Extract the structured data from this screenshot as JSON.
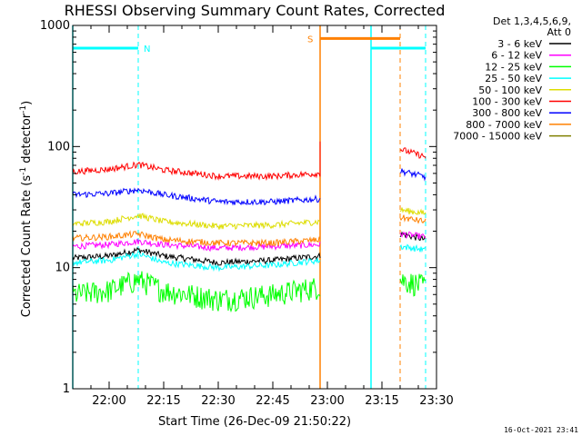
{
  "chart_data": {
    "type": "line",
    "title": "RHESSI Observing Summary Count Rates, Corrected",
    "xlabel": "Start Time (26-Dec-09 21:50:22)",
    "ylabel": "Corrected Count Rate (s⁻¹ detector⁻¹)",
    "ylabel_main": "Corrected Count Rate (s",
    "ylabel_sup1": "-1",
    "ylabel_mid": " detector",
    "ylabel_sup2": "-1",
    "ylabel_end": ")",
    "yscale": "log",
    "ylim": [
      1,
      1000
    ],
    "y_ticks": [
      {
        "value": 1,
        "label": "1"
      },
      {
        "value": 10,
        "label": "10"
      },
      {
        "value": 100,
        "label": "100"
      },
      {
        "value": 1000,
        "label": "1000"
      }
    ],
    "xlim": [
      "21:50",
      "23:30"
    ],
    "x_ticks": [
      {
        "value": "22:00",
        "label": "22:00"
      },
      {
        "value": "22:15",
        "label": "22:15"
      },
      {
        "value": "22:30",
        "label": "22:30"
      },
      {
        "value": "22:45",
        "label": "22:45"
      },
      {
        "value": "23:00",
        "label": "23:00"
      },
      {
        "value": "23:15",
        "label": "23:15"
      },
      {
        "value": "23:30",
        "label": "23:30"
      }
    ],
    "legend": {
      "position": "right",
      "header_line1": "Det 1,3,4,5,6,9,",
      "header_line2": "Att 0"
    },
    "data_gap": [
      "22:58",
      "23:20"
    ],
    "series": [
      {
        "name": "3 - 6 keV",
        "color": "#000000",
        "x": [
          "21:50",
          "22:00",
          "22:08",
          "22:15",
          "22:30",
          "22:45",
          "22:58",
          "23:20",
          "23:27"
        ],
        "y": [
          12,
          12.5,
          14,
          12.5,
          11,
          11.5,
          12.5,
          19,
          17
        ]
      },
      {
        "name": "6 - 12 keV",
        "color": "#ff00ff",
        "x": [
          "21:50",
          "22:00",
          "22:08",
          "22:15",
          "22:30",
          "22:45",
          "22:58",
          "23:20",
          "23:27"
        ],
        "y": [
          15,
          15.5,
          16.5,
          15.5,
          14.5,
          15,
          15.5,
          19,
          18
        ]
      },
      {
        "name": "12 - 25 keV",
        "color": "#00ff00",
        "x": [
          "21:50",
          "22:00",
          "22:08",
          "22:15",
          "22:30",
          "22:45",
          "22:58",
          "23:20",
          "23:27"
        ],
        "y": [
          6,
          6.5,
          8,
          6.5,
          5.5,
          6,
          7,
          8,
          7
        ]
      },
      {
        "name": "25 - 50 keV",
        "color": "#00ffff",
        "x": [
          "21:50",
          "22:00",
          "22:08",
          "22:15",
          "22:30",
          "22:45",
          "22:58",
          "23:20",
          "23:27"
        ],
        "y": [
          11,
          11.5,
          13,
          11,
          10,
          10.5,
          11.5,
          15,
          14
        ]
      },
      {
        "name": "50 - 100 keV",
        "color": "#dddd00",
        "x": [
          "21:50",
          "22:00",
          "22:08",
          "22:15",
          "22:30",
          "22:45",
          "22:58",
          "23:20",
          "23:27"
        ],
        "y": [
          23,
          24,
          27,
          24,
          22,
          22.5,
          24,
          30,
          28
        ]
      },
      {
        "name": "100 - 300 keV",
        "color": "#ff0000",
        "x": [
          "21:50",
          "22:00",
          "22:08",
          "22:15",
          "22:30",
          "22:45",
          "22:58",
          "23:20",
          "23:27"
        ],
        "y": [
          62,
          65,
          71,
          64,
          57,
          57,
          60,
          95,
          82
        ]
      },
      {
        "name": "300 - 800 keV",
        "color": "#0000ff",
        "x": [
          "21:50",
          "22:00",
          "22:08",
          "22:15",
          "22:30",
          "22:45",
          "22:58",
          "23:20",
          "23:27"
        ],
        "y": [
          40,
          41,
          44,
          40,
          35,
          35,
          37,
          63,
          56
        ]
      },
      {
        "name": "800 - 7000 keV",
        "color": "#ff8000",
        "x": [
          "21:50",
          "22:00",
          "22:08",
          "22:15",
          "22:30",
          "22:45",
          "22:58",
          "23:20",
          "23:27"
        ],
        "y": [
          17.5,
          18,
          19,
          17,
          16,
          16,
          17,
          26,
          24
        ]
      },
      {
        "name": "7000 - 15000 keV",
        "color": "#808000",
        "x": [],
        "y": []
      }
    ],
    "night_intervals": [
      {
        "start": "21:50",
        "end": "22:08",
        "label": "N"
      },
      {
        "start": "23:12",
        "end": "23:27",
        "label": ""
      }
    ],
    "saa_interval": {
      "start": "22:58",
      "end": "23:20",
      "label": "S"
    },
    "timestamp": "16-Oct-2021 23:41",
    "colors": {
      "night": "#00ffff",
      "saa": "#ff8000",
      "axes": "#000000",
      "background": "#ffffff"
    }
  }
}
